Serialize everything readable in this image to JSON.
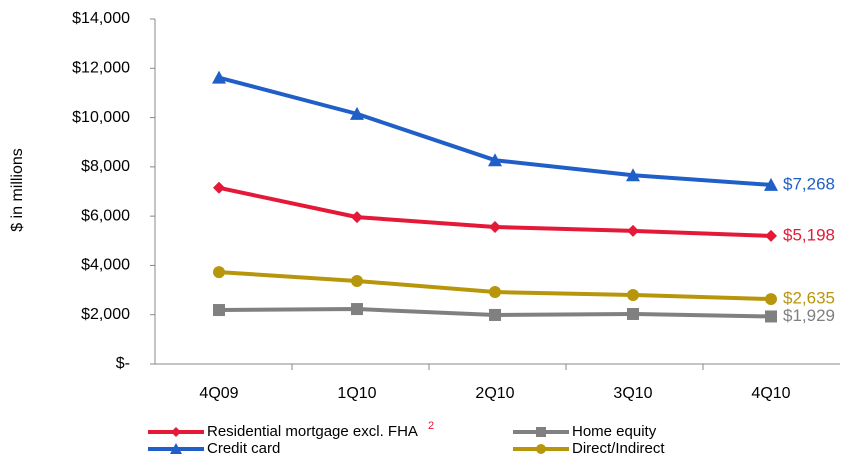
{
  "chart_data": {
    "type": "line",
    "y_label": "$ in millions",
    "categories": [
      "4Q09",
      "1Q10",
      "2Q10",
      "3Q10",
      "4Q10"
    ],
    "ylim": [
      0,
      14000
    ],
    "yticks": [
      {
        "value": 0,
        "label": "$-"
      },
      {
        "value": 2000,
        "label": "$2,000"
      },
      {
        "value": 4000,
        "label": "$4,000"
      },
      {
        "value": 6000,
        "label": "$6,000"
      },
      {
        "value": 8000,
        "label": "$8,000"
      },
      {
        "value": 10000,
        "label": "$10,000"
      },
      {
        "value": 12000,
        "label": "$12,000"
      },
      {
        "value": 14000,
        "label": "$14,000"
      }
    ],
    "grid": false,
    "legend_position": "bottom",
    "series": [
      {
        "name": "Residential mortgage excl. FHA",
        "note": "2",
        "color": "#e31937",
        "marker": "diamond",
        "values": [
          7150,
          5960,
          5560,
          5400,
          5198
        ],
        "value_labels": [
          null,
          null,
          null,
          null,
          "$5,198"
        ]
      },
      {
        "name": "Home equity",
        "color": "#808080",
        "marker": "square",
        "values": [
          2190,
          2230,
          1990,
          2030,
          1929
        ],
        "value_labels": [
          null,
          null,
          null,
          null,
          "$1,929"
        ]
      },
      {
        "name": "Credit card",
        "color": "#1f5fc7",
        "marker": "triangle",
        "values": [
          11620,
          10150,
          8270,
          7660,
          7268
        ],
        "value_labels": [
          null,
          null,
          null,
          null,
          "$7,268"
        ]
      },
      {
        "name": "Direct/Indirect",
        "color": "#b8960c",
        "marker": "circle",
        "values": [
          3730,
          3370,
          2920,
          2800,
          2635
        ],
        "value_labels": [
          null,
          null,
          null,
          null,
          "$2,635"
        ]
      }
    ]
  }
}
